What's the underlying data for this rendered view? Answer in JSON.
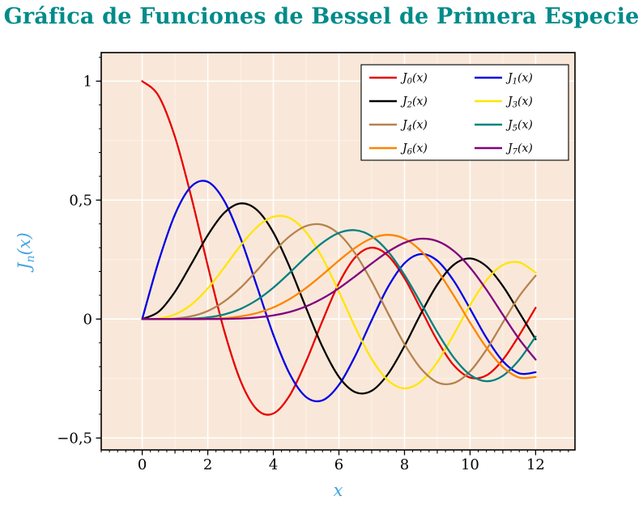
{
  "title": {
    "text": "Gráfica de Funciones de Bessel de Primera Especie",
    "color": "#008b8b"
  },
  "axes": {
    "xlabel": "x",
    "ylabel": "J_n(x)",
    "ylabel_base": "J",
    "ylabel_sub": "n",
    "ylabel_rest": "(x)",
    "label_color": "#44a3e3",
    "xlim": [
      -1.25,
      13.2
    ],
    "ylim": [
      -0.55,
      1.12
    ],
    "x_tick_values": [
      0,
      2,
      4,
      6,
      8,
      10,
      12
    ],
    "x_tick_labels": [
      "0",
      "2",
      "4",
      "6",
      "8",
      "10",
      "12"
    ],
    "y_tick_values": [
      -0.5,
      0,
      0.5,
      1
    ],
    "y_tick_labels": [
      "−0,5",
      "0",
      "0,5",
      "1"
    ],
    "x_minor_tick_step": 0.25,
    "y_minor_tick_step": 0.1
  },
  "plot": {
    "background": "#f9e8d9",
    "grid_color": "#ffffff",
    "frame_color": "#000000",
    "minor_grid_x": [
      1,
      3,
      5,
      7,
      9,
      11
    ],
    "minor_grid_y": [
      -0.25,
      0.25,
      0.75
    ]
  },
  "chart_data": {
    "type": "line",
    "title": "Gráfica de Funciones de Bessel de Primera Especie",
    "xlabel": "x",
    "ylabel": "J_n(x)",
    "xlim": [
      0,
      12
    ],
    "ylim": [
      -0.5,
      1
    ],
    "grid": true,
    "legend_position": "top-right",
    "x": [
      0,
      0.5,
      1,
      1.5,
      2,
      2.5,
      3,
      3.5,
      4,
      4.5,
      5,
      5.5,
      6,
      6.5,
      7,
      7.5,
      8,
      8.5,
      9,
      9.5,
      10,
      10.5,
      11,
      11.5,
      12
    ],
    "series": [
      {
        "name": "J_0(x)",
        "color": "#e80000",
        "values": [
          1.0,
          0.9385,
          0.7652,
          0.5118,
          0.2239,
          -0.0484,
          -0.2601,
          -0.3801,
          -0.3971,
          -0.3205,
          -0.1776,
          -0.0068,
          0.1506,
          0.2601,
          0.3001,
          0.2663,
          0.1717,
          0.0419,
          -0.0903,
          -0.1939,
          -0.2459,
          -0.2366,
          -0.1712,
          -0.0677,
          0.0477
        ]
      },
      {
        "name": "J_1(x)",
        "color": "#0000e6",
        "values": [
          0,
          0.2423,
          0.4401,
          0.5579,
          0.5767,
          0.4971,
          0.3391,
          0.1374,
          -0.066,
          -0.2311,
          -0.3276,
          -0.3414,
          -0.2767,
          -0.1538,
          -0.0047,
          0.1352,
          0.2346,
          0.2731,
          0.2453,
          0.1613,
          0.0435,
          -0.0789,
          -0.1768,
          -0.2284,
          -0.2234
        ]
      },
      {
        "name": "J_2(x)",
        "color": "#000000",
        "values": [
          0,
          0.0306,
          0.1149,
          0.2321,
          0.3528,
          0.4461,
          0.4861,
          0.4586,
          0.3641,
          0.2178,
          0.0466,
          -0.1173,
          -0.2429,
          -0.3074,
          -0.3014,
          -0.2303,
          -0.113,
          0.0223,
          0.1448,
          0.2279,
          0.2546,
          0.2216,
          0.139,
          0.0279,
          -0.0849
        ]
      },
      {
        "name": "J_3(x)",
        "color": "#ffe500",
        "values": [
          0,
          0.0026,
          0.0196,
          0.061,
          0.1289,
          0.2166,
          0.3091,
          0.3868,
          0.4302,
          0.4247,
          0.3648,
          0.2561,
          0.1148,
          -0.0353,
          -0.1676,
          -0.2581,
          -0.2911,
          -0.2626,
          -0.1809,
          -0.0653,
          0.0584,
          0.1633,
          0.2273,
          0.2381,
          0.1951
        ]
      },
      {
        "name": "J_4(x)",
        "color": "#b5824f",
        "values": [
          0,
          0.0002,
          0.0025,
          0.0118,
          0.034,
          0.0738,
          0.132,
          0.2044,
          0.2811,
          0.3484,
          0.3912,
          0.3967,
          0.3576,
          0.2748,
          0.1578,
          0.0238,
          -0.1054,
          -0.2077,
          -0.2655,
          -0.269,
          -0.2196,
          -0.1283,
          -0.015,
          0.0963,
          0.1825
        ]
      },
      {
        "name": "J_5(x)",
        "color": "#008080",
        "values": [
          0,
          0.0,
          0.0002,
          0.0018,
          0.007,
          0.0195,
          0.043,
          0.0804,
          0.1321,
          0.1947,
          0.2611,
          0.3209,
          0.3621,
          0.3736,
          0.3479,
          0.2835,
          0.1858,
          0.0671,
          -0.055,
          -0.1613,
          -0.2341,
          -0.2611,
          -0.2383,
          -0.1711,
          -0.0735
        ]
      },
      {
        "name": "J_6(x)",
        "color": "#ff8400",
        "values": [
          0,
          0.0,
          0.0,
          0.0002,
          0.0012,
          0.0042,
          0.0114,
          0.0254,
          0.0491,
          0.0843,
          0.131,
          0.1868,
          0.2458,
          0.2999,
          0.3392,
          0.3541,
          0.3376,
          0.2867,
          0.2043,
          0.0993,
          -0.0145,
          -0.1203,
          -0.2016,
          -0.2458,
          -0.2437
        ]
      },
      {
        "name": "J_7(x)",
        "color": "#800080",
        "values": [
          0,
          0.0,
          0.0,
          0.0,
          0.0002,
          0.0008,
          0.0025,
          0.0067,
          0.0152,
          0.03,
          0.0534,
          0.0866,
          0.1296,
          0.1801,
          0.2336,
          0.2832,
          0.3206,
          0.3376,
          0.3275,
          0.2868,
          0.2167,
          0.1236,
          0.0184,
          -0.0846,
          -0.1703
        ]
      }
    ]
  }
}
